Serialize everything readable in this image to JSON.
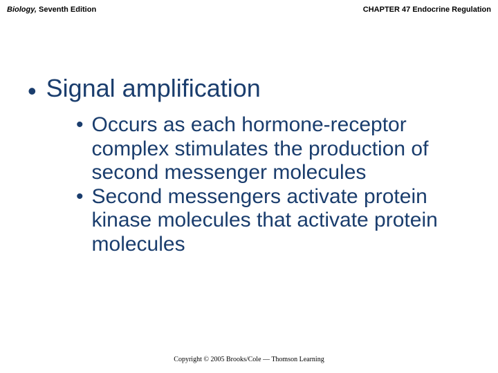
{
  "header": {
    "book_title_italic": "Biology,",
    "book_title_rest": " Seventh Edition",
    "chapter": "CHAPTER 47 Endocrine Regulation"
  },
  "content": {
    "main": "Signal amplification",
    "subs": [
      "Occurs as each hormone-receptor complex stimulates the production of second messenger molecules",
      "Second messengers activate protein kinase molecules that activate protein molecules"
    ]
  },
  "footer": "Copyright © 2005 Brooks/Cole — Thomson Learning",
  "colors": {
    "text_primary": "#1a3d6d",
    "background": "#ffffff",
    "header_text": "#000000"
  },
  "typography": {
    "main_bullet_fontsize": 36,
    "sub_bullet_fontsize": 30,
    "header_fontsize": 11,
    "footer_fontsize": 10
  }
}
